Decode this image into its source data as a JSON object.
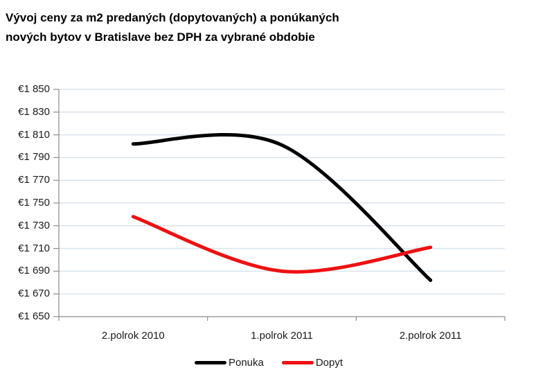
{
  "title": {
    "line1": "Vývoj ceny za m2 predaných (dopytovaných) a ponúkaných",
    "line2": "nových bytov v Bratislave bez DPH za vybrané obdobie"
  },
  "chart_data": {
    "type": "line",
    "smooth": true,
    "title": "Vývoj ceny za m2 predaných (dopytovaných) a ponúkaných nových bytov v Bratislave bez DPH za vybrané obdobie",
    "categories": [
      "2.polrok 2010",
      "1.polrok 2011",
      "2.polrok 2011"
    ],
    "series": [
      {
        "name": "Ponuka",
        "color": "#000000",
        "values": [
          1802,
          1801,
          1682
        ]
      },
      {
        "name": "Dopyt",
        "color": "#ee1111",
        "values": [
          1738,
          1690,
          1711
        ]
      }
    ],
    "ylim": [
      1650,
      1850
    ],
    "ytick_step": 20,
    "ytick_labels": [
      "€1 650",
      "€1 670",
      "€1 690",
      "€1 710",
      "€1 730",
      "€1 750",
      "€1 770",
      "€1 790",
      "€1 810",
      "€1 830",
      "€1 850"
    ],
    "grid": true,
    "gridline_color": "#d8e2ec",
    "axis_color": "#8c8c8c",
    "line_width": 5,
    "legend_position": "bottom"
  }
}
